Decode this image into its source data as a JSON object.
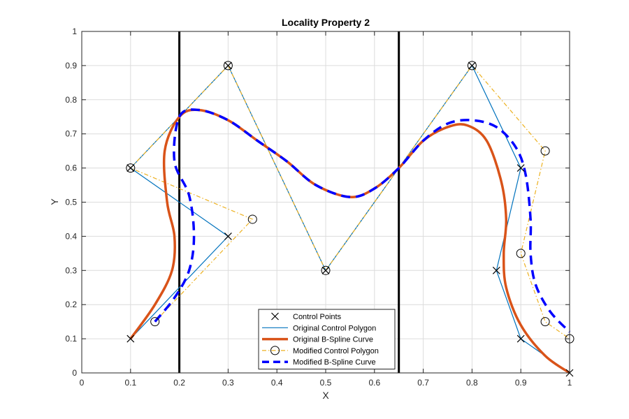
{
  "chart_data": {
    "type": "line",
    "title": "Locality Property 2",
    "xlabel": "X",
    "ylabel": "Y",
    "xlim": [
      0,
      1
    ],
    "ylim": [
      0,
      1
    ],
    "grid": true,
    "xticks": [
      "0",
      "0.1",
      "0.2",
      "0.3",
      "0.4",
      "0.5",
      "0.6",
      "0.7",
      "0.8",
      "0.9",
      "1"
    ],
    "yticks": [
      "0",
      "0.1",
      "0.2",
      "0.3",
      "0.4",
      "0.5",
      "0.6",
      "0.7",
      "0.8",
      "0.9",
      "1"
    ],
    "vertical_lines": [
      0.2,
      0.65
    ],
    "legend_position": "bottom-center",
    "colors": {
      "original_polygon": "#0072BD",
      "original_curve": "#D95319",
      "modified_polygon": "#EDB120",
      "modified_curve": "#0000FF",
      "vertical_lines": "#000000",
      "markers": "#000000"
    },
    "series": [
      {
        "name": "Control Points",
        "kind": "markers-x",
        "x": [
          0.1,
          0.1,
          0.3,
          0.3,
          0.5,
          0.8,
          0.9,
          0.85,
          0.9,
          1.0
        ],
        "y": [
          0.1,
          0.6,
          0.4,
          0.9,
          0.3,
          0.9,
          0.6,
          0.3,
          0.1,
          0.0
        ]
      },
      {
        "name": "Original Control Polygon",
        "kind": "polyline",
        "x": [
          0.1,
          0.3,
          0.1,
          0.3,
          0.5,
          0.8,
          0.9,
          0.85,
          0.9,
          1.0
        ],
        "y": [
          0.1,
          0.4,
          0.6,
          0.9,
          0.3,
          0.9,
          0.6,
          0.3,
          0.1,
          0.0
        ]
      },
      {
        "name": "Original B-Spline Curve",
        "kind": "curve",
        "x": [
          0.1,
          0.15,
          0.185,
          0.19,
          0.175,
          0.17,
          0.2,
          0.24,
          0.3,
          0.36,
          0.42,
          0.48,
          0.55,
          0.6,
          0.65,
          0.7,
          0.75,
          0.79,
          0.83,
          0.86,
          0.87,
          0.865,
          0.87,
          0.9,
          0.95,
          1.0
        ],
        "y": [
          0.1,
          0.2,
          0.3,
          0.4,
          0.5,
          0.65,
          0.75,
          0.77,
          0.74,
          0.68,
          0.62,
          0.55,
          0.515,
          0.54,
          0.6,
          0.68,
          0.72,
          0.725,
          0.68,
          0.56,
          0.45,
          0.35,
          0.25,
          0.14,
          0.05,
          0.0
        ]
      },
      {
        "name": "Modified Control Polygon",
        "kind": "polyline-circles",
        "x": [
          0.15,
          0.35,
          0.1,
          0.3,
          0.5,
          0.8,
          0.95,
          0.9,
          0.95,
          1.0
        ],
        "y": [
          0.15,
          0.45,
          0.6,
          0.9,
          0.3,
          0.9,
          0.65,
          0.35,
          0.15,
          0.1
        ]
      },
      {
        "name": "Modified B-Spline Curve",
        "kind": "curve-dashed",
        "x": [
          0.15,
          0.19,
          0.22,
          0.23,
          0.22,
          0.19,
          0.2,
          0.24,
          0.3,
          0.36,
          0.42,
          0.48,
          0.55,
          0.6,
          0.65,
          0.7,
          0.75,
          0.8,
          0.85,
          0.89,
          0.91,
          0.92,
          0.92,
          0.93,
          0.96,
          1.0
        ],
        "y": [
          0.15,
          0.22,
          0.3,
          0.4,
          0.52,
          0.62,
          0.75,
          0.77,
          0.74,
          0.68,
          0.62,
          0.55,
          0.515,
          0.54,
          0.6,
          0.68,
          0.73,
          0.74,
          0.72,
          0.66,
          0.58,
          0.45,
          0.35,
          0.26,
          0.18,
          0.12
        ]
      }
    ]
  }
}
